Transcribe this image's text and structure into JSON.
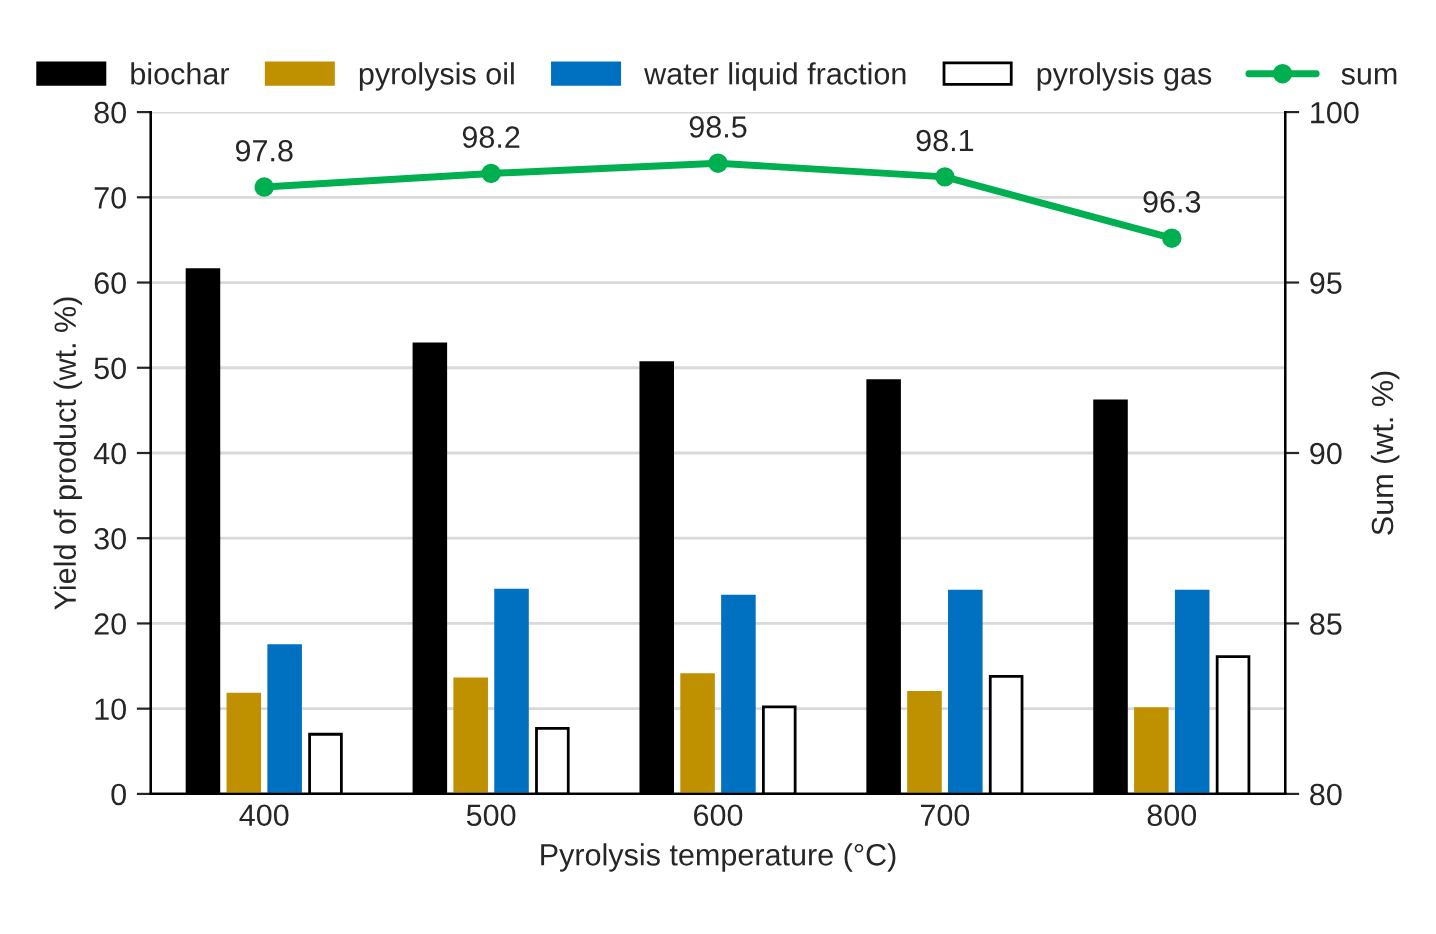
{
  "chart_data": {
    "type": "bar",
    "xlabel": "Pyrolysis temperature (°C)",
    "ylabel": "Yield of product (wt. %)",
    "y2label": "Sum (wt. %)",
    "categories": [
      "400",
      "500",
      "600",
      "700",
      "800"
    ],
    "series": [
      {
        "name": "biochar",
        "color": "#000000",
        "values": [
          61.5,
          52.8,
          50.6,
          48.5,
          46.1
        ]
      },
      {
        "name": "pyrolysis oil",
        "color": "#bf9000",
        "values": [
          11.7,
          13.5,
          14.0,
          11.9,
          10.0
        ]
      },
      {
        "name": "water liquid fraction",
        "color": "#0070c0",
        "values": [
          17.4,
          23.9,
          23.2,
          23.8,
          23.8
        ]
      },
      {
        "name": "pyrolysis gas",
        "color": "#ffffff",
        "values": [
          7.0,
          7.7,
          10.2,
          13.8,
          16.1
        ]
      },
      {
        "name": "sum",
        "type": "line",
        "axis": "y2",
        "color": "#00b050",
        "values": [
          97.8,
          98.2,
          98.5,
          98.1,
          96.3
        ],
        "marker": "circle",
        "data_labels": true
      }
    ],
    "ylim": [
      0,
      80
    ],
    "yticks": [
      0,
      10,
      20,
      30,
      40,
      50,
      60,
      70,
      80
    ],
    "y2lim": [
      80,
      100
    ],
    "y2ticks": [
      80,
      85,
      90,
      95,
      100
    ],
    "grid": "y",
    "legend": "top"
  }
}
